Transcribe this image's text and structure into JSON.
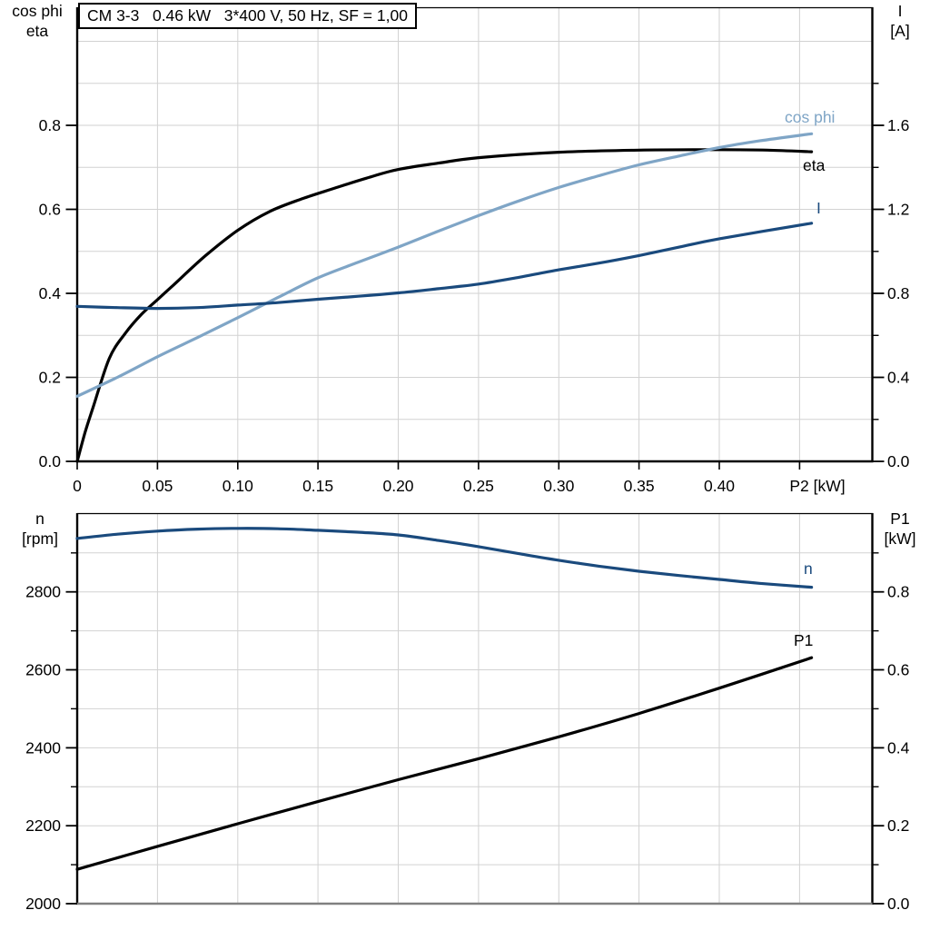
{
  "title": "CM 3-3   0.46 kW   3*400 V, 50 Hz, SF = 1,00",
  "colors": {
    "curve_black": "#000000",
    "curve_dark_blue": "#1a4a7d",
    "curve_light_blue": "#7fa5c6",
    "grid": "#d2d2d2",
    "axis_frame": "#000000",
    "bottom_frame_gray": "#808080",
    "background": "#ffffff"
  },
  "chart_data": [
    {
      "id": "top",
      "type": "line",
      "title": "CM 3-3   0.46 kW   3*400 V, 50 Hz, SF = 1,00",
      "legend_position": "right-inline",
      "grid": true,
      "x_axis": {
        "label": "P2 [kW]",
        "range": [
          0,
          0.495
        ],
        "ticks": [
          0,
          0.05,
          0.1,
          0.15,
          0.2,
          0.25,
          0.3,
          0.35,
          0.4,
          0.45
        ],
        "tick_labels": [
          "0",
          "0.05",
          "0.10",
          "0.15",
          "0.20",
          "0.25",
          "0.30",
          "0.35",
          "0.40",
          ""
        ],
        "grid": [
          0.05,
          0.1,
          0.15,
          0.2,
          0.25,
          0.3,
          0.35,
          0.4,
          0.45
        ]
      },
      "y_left": {
        "title_lines": [
          "cos phi",
          "eta"
        ],
        "range": [
          0,
          1.08
        ],
        "ticks": [
          0,
          0.2,
          0.4,
          0.6,
          0.8
        ],
        "tick_labels": [
          "0.0",
          "0.2",
          "0.4",
          "0.6",
          "0.8"
        ],
        "grid": [
          0.1,
          0.2,
          0.3,
          0.4,
          0.5,
          0.6,
          0.7,
          0.8,
          0.9,
          1.0
        ]
      },
      "y_right": {
        "title_lines": [
          "I",
          "[A]"
        ],
        "range": [
          0,
          2.16
        ],
        "ticks": [
          0,
          0.4,
          0.8,
          1.2,
          1.6
        ],
        "tick_labels": [
          "0.0",
          "0.4",
          "0.8",
          "1.2",
          "1.6"
        ],
        "minor_ticks": [
          0.2,
          0.6,
          1.0,
          1.4,
          1.8
        ]
      },
      "series": [
        {
          "name": "eta",
          "label": "eta",
          "axis": "left",
          "color": "#000000",
          "points": [
            [
              0,
              0
            ],
            [
              0.005,
              0.07
            ],
            [
              0.01,
              0.13
            ],
            [
              0.02,
              0.245
            ],
            [
              0.03,
              0.305
            ],
            [
              0.04,
              0.35
            ],
            [
              0.05,
              0.385
            ],
            [
              0.06,
              0.42
            ],
            [
              0.08,
              0.49
            ],
            [
              0.1,
              0.55
            ],
            [
              0.12,
              0.595
            ],
            [
              0.14,
              0.625
            ],
            [
              0.16,
              0.65
            ],
            [
              0.18,
              0.674
            ],
            [
              0.2,
              0.695
            ],
            [
              0.225,
              0.71
            ],
            [
              0.25,
              0.723
            ],
            [
              0.3,
              0.736
            ],
            [
              0.35,
              0.741
            ],
            [
              0.4,
              0.742
            ],
            [
              0.43,
              0.741
            ],
            [
              0.4575,
              0.737
            ]
          ]
        },
        {
          "name": "cos phi",
          "label": "cos phi",
          "axis": "left",
          "color": "#7fa5c6",
          "points": [
            [
              0,
              0.155
            ],
            [
              0.025,
              0.2
            ],
            [
              0.05,
              0.249
            ],
            [
              0.075,
              0.295
            ],
            [
              0.1,
              0.342
            ],
            [
              0.125,
              0.39
            ],
            [
              0.15,
              0.437
            ],
            [
              0.175,
              0.474
            ],
            [
              0.2,
              0.51
            ],
            [
              0.225,
              0.548
            ],
            [
              0.25,
              0.585
            ],
            [
              0.275,
              0.62
            ],
            [
              0.3,
              0.652
            ],
            [
              0.325,
              0.68
            ],
            [
              0.35,
              0.706
            ],
            [
              0.375,
              0.727
            ],
            [
              0.4,
              0.747
            ],
            [
              0.425,
              0.763
            ],
            [
              0.4575,
              0.78
            ]
          ]
        },
        {
          "name": "I",
          "label": "I",
          "axis": "right",
          "color": "#1a4a7d",
          "points": [
            [
              0,
              0.738
            ],
            [
              0.025,
              0.732
            ],
            [
              0.05,
              0.728
            ],
            [
              0.075,
              0.732
            ],
            [
              0.1,
              0.744
            ],
            [
              0.125,
              0.756
            ],
            [
              0.15,
              0.772
            ],
            [
              0.175,
              0.786
            ],
            [
              0.2,
              0.802
            ],
            [
              0.225,
              0.822
            ],
            [
              0.25,
              0.844
            ],
            [
              0.275,
              0.876
            ],
            [
              0.3,
              0.912
            ],
            [
              0.325,
              0.944
            ],
            [
              0.35,
              0.98
            ],
            [
              0.375,
              1.02
            ],
            [
              0.4,
              1.06
            ],
            [
              0.4575,
              1.134
            ]
          ]
        }
      ]
    },
    {
      "id": "bottom",
      "type": "line",
      "title": "",
      "grid": true,
      "x_axis": {
        "label": "",
        "range": [
          0,
          0.495
        ],
        "ticks": [],
        "tick_labels": [],
        "grid": [
          0.05,
          0.1,
          0.15,
          0.2,
          0.25,
          0.3,
          0.35,
          0.4,
          0.45
        ]
      },
      "y_left": {
        "title_lines": [
          "n",
          "[rpm]"
        ],
        "range": [
          2000,
          3000
        ],
        "ticks": [
          2000,
          2200,
          2400,
          2600,
          2800
        ],
        "tick_labels": [
          "2000",
          "2200",
          "2400",
          "2600",
          "2800"
        ],
        "minor_ticks": [
          2100,
          2300,
          2500,
          2700,
          2900
        ],
        "grid": [
          2100,
          2200,
          2300,
          2400,
          2500,
          2600,
          2700,
          2800,
          2900
        ]
      },
      "y_right": {
        "title_lines": [
          "P1",
          "[kW]"
        ],
        "range": [
          0,
          1.0
        ],
        "ticks": [
          0,
          0.2,
          0.4,
          0.6,
          0.8
        ],
        "tick_labels": [
          "0.0",
          "0.2",
          "0.4",
          "0.6",
          "0.8"
        ],
        "minor_ticks": [
          0.1,
          0.3,
          0.5,
          0.7,
          0.9
        ]
      },
      "series": [
        {
          "name": "n",
          "label": "n",
          "axis": "left",
          "color": "#1a4a7d",
          "points": [
            [
              0,
              2937
            ],
            [
              0.025,
              2948
            ],
            [
              0.05,
              2956
            ],
            [
              0.075,
              2961
            ],
            [
              0.1,
              2963
            ],
            [
              0.125,
              2962
            ],
            [
              0.15,
              2958
            ],
            [
              0.175,
              2953
            ],
            [
              0.2,
              2946
            ],
            [
              0.225,
              2932
            ],
            [
              0.25,
              2916
            ],
            [
              0.275,
              2898
            ],
            [
              0.3,
              2881
            ],
            [
              0.325,
              2866
            ],
            [
              0.35,
              2853
            ],
            [
              0.375,
              2842
            ],
            [
              0.4,
              2832
            ],
            [
              0.425,
              2822
            ],
            [
              0.4575,
              2812
            ]
          ]
        },
        {
          "name": "P1",
          "label": "P1",
          "axis": "right",
          "color": "#000000",
          "points": [
            [
              0,
              0.088
            ],
            [
              0.05,
              0.147
            ],
            [
              0.1,
              0.205
            ],
            [
              0.15,
              0.262
            ],
            [
              0.2,
              0.318
            ],
            [
              0.25,
              0.372
            ],
            [
              0.3,
              0.428
            ],
            [
              0.35,
              0.488
            ],
            [
              0.4,
              0.553
            ],
            [
              0.4575,
              0.631
            ]
          ]
        }
      ]
    }
  ]
}
